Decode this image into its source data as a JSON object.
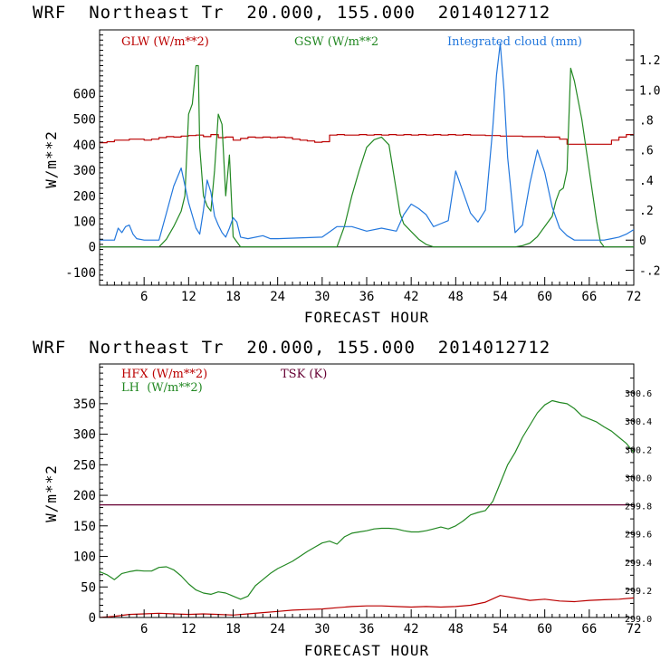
{
  "chart_data": [
    {
      "type": "line",
      "title": "WRF  Northeast Tr  20.000, 155.000  2014012712",
      "xlabel": "FORECAST HOUR",
      "ylabel": "W/m**2",
      "xlim": [
        0,
        72
      ],
      "ylim": [
        -150,
        850
      ],
      "y2lim": [
        -0.3,
        1.4
      ],
      "x_ticks": [
        6,
        12,
        18,
        24,
        30,
        36,
        42,
        48,
        54,
        60,
        66,
        72
      ],
      "y_ticks": [
        -100,
        0,
        100,
        200,
        300,
        400,
        500,
        600
      ],
      "y2_ticks": [
        -0.2,
        0,
        0.2,
        0.4,
        0.6,
        0.8,
        1.0,
        1.2
      ],
      "y2_tick_labels": [
        "-.2",
        "0",
        ".2",
        ".4",
        ".6",
        ".8",
        "1.0",
        "1.2"
      ],
      "legend_placement": "top",
      "series": [
        {
          "name": "GLW (W/m**2)",
          "color": "#bb0000",
          "axis": "left",
          "step": true,
          "x": [
            0,
            1,
            2,
            3,
            4,
            5,
            6,
            7,
            8,
            9,
            10,
            11,
            12,
            13,
            14,
            15,
            16,
            17,
            18,
            19,
            20,
            21,
            22,
            23,
            24,
            25,
            26,
            27,
            28,
            29,
            30,
            31,
            32,
            33,
            34,
            35,
            36,
            37,
            38,
            39,
            40,
            41,
            42,
            43,
            44,
            45,
            46,
            47,
            48,
            49,
            50,
            51,
            52,
            53,
            54,
            55,
            56,
            57,
            58,
            59,
            60,
            61,
            62,
            63,
            64,
            65,
            66,
            67,
            68,
            69,
            70,
            71,
            72
          ],
          "y": [
            408,
            412,
            418,
            418,
            422,
            422,
            418,
            422,
            428,
            432,
            430,
            434,
            436,
            438,
            432,
            440,
            428,
            430,
            418,
            425,
            430,
            428,
            430,
            428,
            430,
            428,
            422,
            418,
            415,
            410,
            412,
            438,
            440,
            438,
            438,
            440,
            438,
            440,
            438,
            440,
            438,
            440,
            438,
            440,
            438,
            440,
            438,
            440,
            438,
            440,
            438,
            438,
            436,
            436,
            434,
            434,
            434,
            432,
            432,
            432,
            430,
            430,
            422,
            402,
            402,
            402,
            402,
            402,
            402,
            418,
            430,
            440,
            440
          ]
        },
        {
          "name": "GSW (W/m**2",
          "color": "#228822",
          "axis": "left",
          "x": [
            0,
            8,
            9,
            10,
            11,
            11.5,
            12,
            12.5,
            13,
            13.3,
            13.5,
            14,
            14.5,
            15,
            15.5,
            16,
            16.5,
            17,
            17.5,
            18,
            18.5,
            19,
            20,
            30,
            32,
            33,
            34,
            35,
            36,
            37,
            38,
            39,
            40,
            40.5,
            41,
            42,
            43,
            44,
            45,
            56,
            57,
            58,
            59,
            60,
            61,
            61.5,
            62,
            62.5,
            63,
            63.5,
            64,
            65,
            66,
            67,
            67.5,
            68,
            72
          ],
          "y": [
            0,
            0,
            30,
            80,
            140,
            200,
            520,
            560,
            710,
            710,
            390,
            200,
            160,
            140,
            300,
            520,
            480,
            200,
            360,
            40,
            20,
            0,
            0,
            0,
            0,
            80,
            200,
            300,
            390,
            420,
            430,
            400,
            220,
            130,
            90,
            60,
            30,
            10,
            0,
            0,
            5,
            15,
            40,
            80,
            120,
            180,
            220,
            230,
            300,
            700,
            650,
            500,
            300,
            100,
            20,
            0,
            0
          ]
        },
        {
          "name": "Integrated cloud (mm)",
          "color": "#2277dd",
          "axis": "right",
          "x": [
            0,
            2,
            2.5,
            3,
            3.5,
            4,
            4.5,
            5,
            6,
            8,
            9,
            10,
            11,
            12,
            13,
            13.5,
            14,
            14.5,
            15,
            15.5,
            16,
            16.5,
            17,
            17.5,
            18,
            18.5,
            19,
            20,
            22,
            23,
            24,
            30,
            32,
            34,
            36,
            38,
            40,
            41,
            42,
            43,
            44,
            45,
            46,
            47,
            48,
            49,
            50,
            51,
            52,
            53,
            53.5,
            54,
            54.5,
            55,
            56,
            57,
            58,
            59,
            60,
            61,
            62,
            63,
            64,
            65,
            66,
            67,
            68,
            69,
            70,
            71,
            72
          ],
          "y": [
            0,
            0,
            0.08,
            0.05,
            0.09,
            0.1,
            0.04,
            0.01,
            0,
            0,
            0.18,
            0.36,
            0.48,
            0.25,
            0.08,
            0.04,
            0.2,
            0.4,
            0.32,
            0.16,
            0.1,
            0.05,
            0.02,
            0.08,
            0.15,
            0.12,
            0.02,
            0.01,
            0.03,
            0.01,
            0.01,
            0.02,
            0.09,
            0.09,
            0.06,
            0.08,
            0.06,
            0.17,
            0.24,
            0.21,
            0.17,
            0.09,
            0.11,
            0.13,
            0.46,
            0.32,
            0.18,
            0.12,
            0.2,
            0.75,
            1.1,
            1.31,
            1.0,
            0.55,
            0.05,
            0.1,
            0.38,
            0.6,
            0.45,
            0.22,
            0.08,
            0.03,
            0,
            0,
            0,
            0,
            0,
            0.01,
            0.02,
            0.04,
            0.07
          ]
        }
      ]
    },
    {
      "type": "line",
      "title": "WRF  Northeast Tr  20.000, 155.000  2014012712",
      "xlabel": "FORECAST HOUR",
      "ylabel": "W/m**2",
      "xlim": [
        0,
        72
      ],
      "ylim": [
        0,
        415
      ],
      "y2lim": [
        299,
        300.8
      ],
      "x_ticks": [
        6,
        12,
        18,
        24,
        30,
        36,
        42,
        48,
        54,
        60,
        66,
        72
      ],
      "y_ticks": [
        0,
        50,
        100,
        150,
        200,
        250,
        300,
        350
      ],
      "y2_ticks": [
        299.0,
        299.2,
        299.4,
        299.6,
        299.8,
        300.0,
        300.2,
        300.4,
        300.6
      ],
      "y2_tick_labels": [
        "299.0",
        "299.2",
        "299.4",
        "299.6",
        "299.8",
        "300.0",
        "300.2",
        "300.4",
        "300.6"
      ],
      "legend_placement": "top-left",
      "series": [
        {
          "name": "HFX (W/m**2)",
          "color": "#bb0000",
          "axis": "left",
          "x": [
            0,
            2,
            4,
            6,
            8,
            10,
            12,
            14,
            16,
            18,
            20,
            22,
            24,
            26,
            28,
            30,
            32,
            34,
            36,
            38,
            40,
            42,
            44,
            46,
            48,
            50,
            52,
            54,
            56,
            58,
            60,
            62,
            64,
            66,
            68,
            70,
            72
          ],
          "y": [
            0,
            2,
            5,
            6,
            7,
            6,
            5,
            6,
            5,
            4,
            6,
            8,
            10,
            12,
            13,
            14,
            16,
            18,
            19,
            19,
            18,
            17,
            18,
            17,
            18,
            20,
            25,
            36,
            32,
            28,
            30,
            27,
            26,
            28,
            29,
            30,
            32
          ]
        },
        {
          "name": "LH  (W/m**2)",
          "color": "#228822",
          "axis": "left",
          "x": [
            0,
            1,
            2,
            3,
            4,
            5,
            6,
            7,
            8,
            9,
            10,
            11,
            12,
            13,
            14,
            15,
            16,
            17,
            18,
            19,
            20,
            21,
            22,
            23,
            24,
            25,
            26,
            27,
            28,
            29,
            30,
            31,
            32,
            33,
            34,
            35,
            36,
            37,
            38,
            39,
            40,
            41,
            42,
            43,
            44,
            45,
            46,
            47,
            48,
            49,
            50,
            51,
            52,
            53,
            54,
            55,
            56,
            57,
            58,
            59,
            60,
            61,
            62,
            63,
            64,
            65,
            66,
            67,
            68,
            69,
            70,
            71,
            72
          ],
          "y": [
            75,
            70,
            62,
            72,
            75,
            77,
            76,
            76,
            82,
            83,
            78,
            68,
            55,
            45,
            40,
            38,
            42,
            40,
            35,
            30,
            35,
            52,
            62,
            72,
            80,
            86,
            92,
            100,
            108,
            115,
            122,
            125,
            120,
            132,
            138,
            140,
            142,
            145,
            146,
            146,
            145,
            142,
            140,
            140,
            142,
            145,
            148,
            145,
            150,
            158,
            168,
            172,
            175,
            190,
            220,
            250,
            270,
            295,
            315,
            335,
            348,
            355,
            352,
            350,
            342,
            330,
            325,
            320,
            312,
            305,
            295,
            285,
            270
          ]
        },
        {
          "name": "TSK (K)",
          "color": "#660033",
          "axis": "right",
          "x": [
            0,
            72
          ],
          "y": [
            299.8,
            299.8
          ]
        }
      ]
    }
  ]
}
